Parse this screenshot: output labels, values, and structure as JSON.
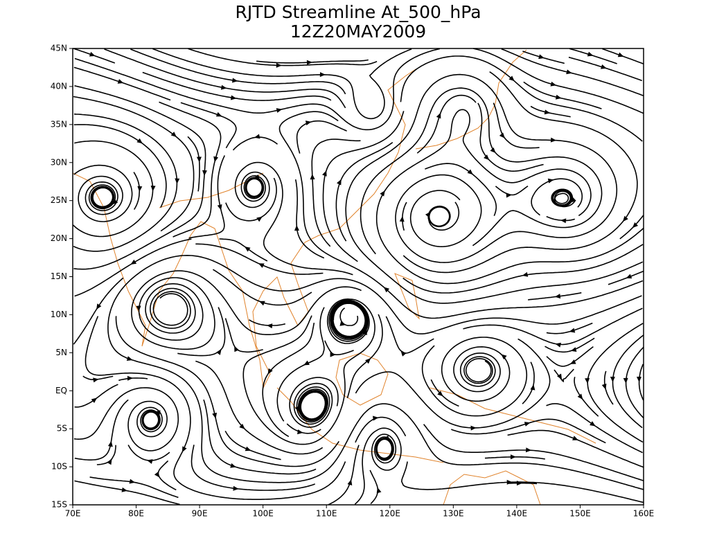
{
  "map": {
    "title": "RJTD Streamline At_500_hPa",
    "subtitle": "12Z20MAY2009",
    "xlim": [
      70,
      160
    ],
    "ylim": [
      -15,
      45
    ],
    "xticks": [
      {
        "value": 70,
        "label": "70E"
      },
      {
        "value": 80,
        "label": "80E"
      },
      {
        "value": 90,
        "label": "90E"
      },
      {
        "value": 100,
        "label": "100E"
      },
      {
        "value": 110,
        "label": "110E"
      },
      {
        "value": 120,
        "label": "120E"
      },
      {
        "value": 130,
        "label": "130E"
      },
      {
        "value": 140,
        "label": "140E"
      },
      {
        "value": 150,
        "label": "150E"
      },
      {
        "value": 160,
        "label": "160E"
      }
    ],
    "yticks": [
      {
        "value": -15,
        "label": "15S"
      },
      {
        "value": -10,
        "label": "10S"
      },
      {
        "value": -5,
        "label": "5S"
      },
      {
        "value": 0,
        "label": "EQ"
      },
      {
        "value": 5,
        "label": "5N"
      },
      {
        "value": 10,
        "label": "10N"
      },
      {
        "value": 15,
        "label": "15N"
      },
      {
        "value": 20,
        "label": "20N"
      },
      {
        "value": 25,
        "label": "25N"
      },
      {
        "value": 30,
        "label": "30N"
      },
      {
        "value": 35,
        "label": "35N"
      },
      {
        "value": 40,
        "label": "40N"
      },
      {
        "value": 45,
        "label": "45N"
      }
    ]
  }
}
